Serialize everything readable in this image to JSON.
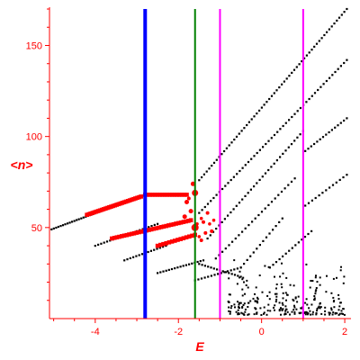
{
  "chart_data": {
    "type": "scatter",
    "xlabel": "E",
    "ylabel": "<n>",
    "xlim": [
      -5.1,
      2.15
    ],
    "ylim": [
      0,
      171
    ],
    "xticks": [
      -4,
      -2,
      0,
      2
    ],
    "xtick_labels": [
      "-4",
      "-2",
      "0",
      "2"
    ],
    "yticks": [
      50,
      100,
      150
    ],
    "ytick_labels": [
      "50",
      "100",
      "150"
    ],
    "grid": false,
    "vertical_lines": [
      {
        "x": -2.8,
        "color": "#0000ff"
      },
      {
        "x": -1.6,
        "color": "#008000"
      },
      {
        "x": -1.0,
        "color": "#ff00ff"
      },
      {
        "x": 1.0,
        "color": "#ff00ff"
      }
    ],
    "series": [
      {
        "color": "#000000",
        "x_start": -5.05,
        "x_end": -2.8,
        "y_start": 49,
        "y_end": 68,
        "step": 0.055
      },
      {
        "color": "#ff0000",
        "x_start": -4.2,
        "x_end": -2.9,
        "y_start": 57,
        "y_end": 67,
        "step": 0.045
      },
      {
        "color": "#ff0000",
        "x_start": -2.8,
        "x_end": -1.8,
        "y_start": 68,
        "y_end": 68,
        "step": 0.06
      },
      {
        "color": "#000000",
        "x_start": -1.5,
        "x_end": 2.05,
        "y_start": 76,
        "y_end": 170,
        "step": 0.06
      },
      {
        "color": "#000000",
        "x_start": -4.0,
        "x_end": -2.5,
        "y_start": 40,
        "y_end": 52,
        "step": 0.07
      },
      {
        "color": "#ff0000",
        "x_start": -3.6,
        "x_end": -1.7,
        "y_start": 44,
        "y_end": 54,
        "step": 0.06
      },
      {
        "color": "#000000",
        "x_start": -1.5,
        "x_end": 2.05,
        "y_start": 58,
        "y_end": 142,
        "step": 0.07
      },
      {
        "color": "#000000",
        "x_start": -3.3,
        "x_end": -2.3,
        "y_start": 32,
        "y_end": 40,
        "step": 0.07
      },
      {
        "color": "#ff0000",
        "x_start": -2.5,
        "x_end": -1.6,
        "y_start": 40,
        "y_end": 46,
        "step": 0.07
      },
      {
        "color": "#000000",
        "x_start": -1.3,
        "x_end": 1.0,
        "y_start": 44,
        "y_end": 103,
        "step": 0.07
      },
      {
        "color": "#000000",
        "x_start": 1.05,
        "x_end": 2.05,
        "y_start": 92,
        "y_end": 110,
        "step": 0.07
      },
      {
        "color": "#000000",
        "x_start": -2.5,
        "x_end": -1.4,
        "y_start": 25,
        "y_end": 32,
        "step": 0.07
      },
      {
        "color": "#000000",
        "x_start": -1.1,
        "x_end": 0.8,
        "y_start": 33,
        "y_end": 77,
        "step": 0.08
      },
      {
        "color": "#000000",
        "x_start": 1.05,
        "x_end": 2.05,
        "y_start": 62,
        "y_end": 79,
        "step": 0.08
      },
      {
        "color": "#000000",
        "x_start": -1.5,
        "x_end": -0.5,
        "y_start": 30,
        "y_end": 23,
        "step": 0.07
      },
      {
        "color": "#000000",
        "x_start": -0.5,
        "x_end": 0.5,
        "y_start": 28,
        "y_end": 55,
        "step": 0.08
      },
      {
        "color": "#000000",
        "x_start": 0.2,
        "x_end": 1.2,
        "y_start": 28,
        "y_end": 48,
        "step": 0.08
      },
      {
        "color": "#000000",
        "x_start": -1.6,
        "x_end": -0.5,
        "y_start": 21,
        "y_end": 28,
        "step": 0.08
      }
    ],
    "points": [
      {
        "x": -1.6,
        "y": 69,
        "color": "#ff0000",
        "size": 3.5
      },
      {
        "x": -1.6,
        "y": 50,
        "color": "#ff0000",
        "size": 4
      },
      {
        "x": -1.8,
        "y": 64,
        "color": "#ff0000",
        "size": 2.5
      },
      {
        "x": -1.7,
        "y": 59,
        "color": "#ff0000",
        "size": 2.5
      },
      {
        "x": -1.85,
        "y": 56,
        "color": "#ff0000",
        "size": 2.5
      },
      {
        "x": -1.4,
        "y": 53,
        "color": "#ff0000",
        "size": 2
      },
      {
        "x": -1.3,
        "y": 58,
        "color": "#ff0000",
        "size": 2
      },
      {
        "x": -1.2,
        "y": 48,
        "color": "#ff0000",
        "size": 2
      },
      {
        "x": -1.45,
        "y": 43,
        "color": "#ff0000",
        "size": 2
      },
      {
        "x": -1.35,
        "y": 47,
        "color": "#ff0000",
        "size": 2
      },
      {
        "x": -1.75,
        "y": 66,
        "color": "#ff0000",
        "size": 2
      },
      {
        "x": -1.65,
        "y": 74,
        "color": "#ff0000",
        "size": 2.5
      },
      {
        "x": -1.5,
        "y": 45,
        "color": "#ff0000",
        "size": 1.8
      },
      {
        "x": -1.55,
        "y": 52,
        "color": "#ff0000",
        "size": 1.8
      },
      {
        "x": -1.15,
        "y": 54,
        "color": "#ff0000",
        "size": 1.8
      },
      {
        "x": -1.45,
        "y": 55,
        "color": "#ff0000",
        "size": 1.8
      },
      {
        "x": -1.25,
        "y": 52,
        "color": "#ff0000",
        "size": 1.8
      }
    ],
    "cloud": {
      "x_start": -0.8,
      "x_end": 2.0,
      "y_min": 2,
      "y_max": 35,
      "count": 240,
      "seed": 7,
      "color": "#000000"
    }
  }
}
